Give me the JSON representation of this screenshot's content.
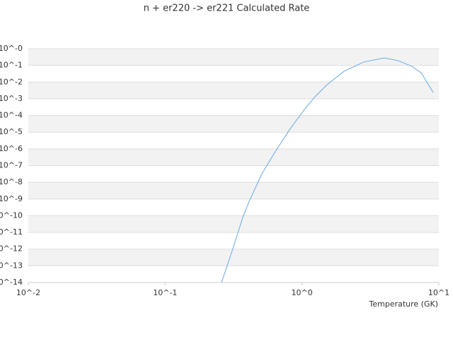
{
  "chart_data": {
    "type": "line",
    "title": "n + er220 -> er221 Calculated Rate",
    "x_label": "Temperature (GK)",
    "x_log": true,
    "y_log": true,
    "grid": true,
    "xlim": [
      0.01,
      10
    ],
    "ylim": [
      1e-14,
      1
    ],
    "xticks": [
      {
        "value": 0.01,
        "label": "10^-2"
      },
      {
        "value": 0.1,
        "label": "10^-1"
      },
      {
        "value": 1,
        "label": "10^0"
      },
      {
        "value": 10,
        "label": "10^1"
      }
    ],
    "yticks": [
      {
        "value": 1,
        "label": "10^-0"
      },
      {
        "value": 0.1,
        "label": "10^-1"
      },
      {
        "value": 0.01,
        "label": "10^-2"
      },
      {
        "value": 0.001,
        "label": "10^-3"
      },
      {
        "value": 0.0001,
        "label": "10^-4"
      },
      {
        "value": 1e-05,
        "label": "10^-5"
      },
      {
        "value": 1e-06,
        "label": "10^-6"
      },
      {
        "value": 1e-07,
        "label": "10^-7"
      },
      {
        "value": 1e-08,
        "label": "10^-8"
      },
      {
        "value": 1e-09,
        "label": "10^-9"
      },
      {
        "value": 1e-10,
        "label": "10^-10"
      },
      {
        "value": 1e-11,
        "label": "10^-11"
      },
      {
        "value": 1e-12,
        "label": "10^-12"
      },
      {
        "value": 1e-13,
        "label": "10^-13"
      },
      {
        "value": 1e-14,
        "label": "10^-14"
      }
    ],
    "x": [
      0.258,
      0.309,
      0.369,
      0.411,
      0.509,
      0.631,
      0.8,
      1.04,
      1.24,
      1.52,
      2.03,
      2.83,
      4.0,
      5.07,
      6.37,
      7.43,
      8.17,
      9.1
    ],
    "series": [
      {
        "color": "#6aa9e9",
        "values": [
          1e-14,
          8e-13,
          7.8e-11,
          7.2e-10,
          3.2e-08,
          6e-07,
          1.2e-05,
          0.00023,
          0.0013,
          0.0069,
          0.045,
          0.16,
          0.28,
          0.19,
          0.087,
          0.036,
          0.01,
          0.0024
        ]
      }
    ]
  }
}
